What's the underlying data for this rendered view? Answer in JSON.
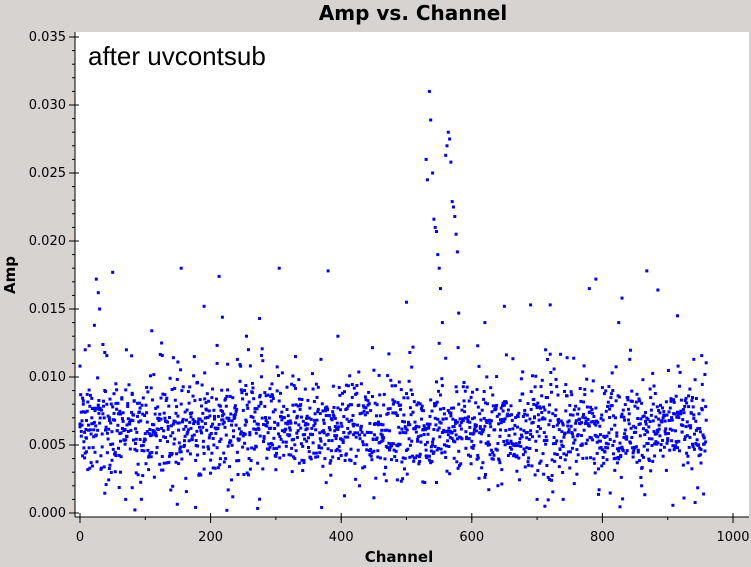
{
  "chart_data": {
    "type": "scatter",
    "title": "Amp vs. Channel",
    "xlabel": "Channel",
    "ylabel": "Amp",
    "annotation": "after uvcontsub",
    "xlim": [
      0,
      1000
    ],
    "ylim": [
      0,
      0.035
    ],
    "x_ticks": [
      "0",
      "200",
      "400",
      "600",
      "800",
      "1000"
    ],
    "y_ticks": [
      "0.000",
      "0.005",
      "0.010",
      "0.015",
      "0.020",
      "0.025",
      "0.030",
      "0.035"
    ],
    "marker_color": "#0000ff",
    "channel_range": [
      0,
      959
    ],
    "noise_band": [
      0.0002,
      0.0125
    ],
    "points": [
      [
        0,
        0.0108
      ],
      [
        2,
        0.006
      ],
      [
        5,
        0.008
      ],
      [
        8,
        0.012
      ],
      [
        10,
        0.0045
      ],
      [
        14,
        0.0123
      ],
      [
        18,
        0.007
      ],
      [
        22,
        0.0138
      ],
      [
        25,
        0.0172
      ],
      [
        28,
        0.0162
      ],
      [
        30,
        0.015
      ],
      [
        38,
        0.0118
      ],
      [
        45,
        0.007
      ],
      [
        50,
        0.0177
      ],
      [
        55,
        0.0095
      ],
      [
        62,
        0.003
      ],
      [
        70,
        0.001
      ],
      [
        80,
        0.0088
      ],
      [
        110,
        0.0134
      ],
      [
        125,
        0.0125
      ],
      [
        150,
        0.0111
      ],
      [
        155,
        0.018
      ],
      [
        175,
        0.0115
      ],
      [
        180,
        0.0096
      ],
      [
        190,
        0.0152
      ],
      [
        210,
        0.011
      ],
      [
        213,
        0.0174
      ],
      [
        218,
        0.0144
      ],
      [
        225,
        0.0002
      ],
      [
        255,
        0.013
      ],
      [
        275,
        0.0143
      ],
      [
        305,
        0.018
      ],
      [
        330,
        0.0115
      ],
      [
        380,
        0.0178
      ],
      [
        395,
        0.013
      ],
      [
        450,
        0.0105
      ],
      [
        500,
        0.0155
      ],
      [
        505,
        0.0118
      ],
      [
        530,
        0.026
      ],
      [
        532,
        0.0245
      ],
      [
        535,
        0.031
      ],
      [
        537,
        0.0289
      ],
      [
        540,
        0.025
      ],
      [
        542,
        0.0216
      ],
      [
        544,
        0.021
      ],
      [
        546,
        0.0207
      ],
      [
        548,
        0.019
      ],
      [
        550,
        0.018
      ],
      [
        552,
        0.0165
      ],
      [
        555,
        0.014
      ],
      [
        560,
        0.0263
      ],
      [
        562,
        0.027
      ],
      [
        564,
        0.028
      ],
      [
        566,
        0.0275
      ],
      [
        568,
        0.0258
      ],
      [
        570,
        0.0229
      ],
      [
        572,
        0.0225
      ],
      [
        574,
        0.0218
      ],
      [
        576,
        0.0205
      ],
      [
        578,
        0.0192
      ],
      [
        580,
        0.0147
      ],
      [
        620,
        0.014
      ],
      [
        650,
        0.0152
      ],
      [
        690,
        0.0153
      ],
      [
        720,
        0.0153
      ],
      [
        780,
        0.0165
      ],
      [
        790,
        0.0172
      ],
      [
        825,
        0.014
      ],
      [
        830,
        0.0158
      ],
      [
        868,
        0.0178
      ],
      [
        885,
        0.0164
      ],
      [
        915,
        0.0145
      ],
      [
        940,
        0.0113
      ],
      [
        700,
        0.001
      ],
      [
        712,
        0.0005
      ],
      [
        740,
        0.001
      ],
      [
        860,
        0.002
      ],
      [
        955,
        0.0014
      ]
    ]
  }
}
